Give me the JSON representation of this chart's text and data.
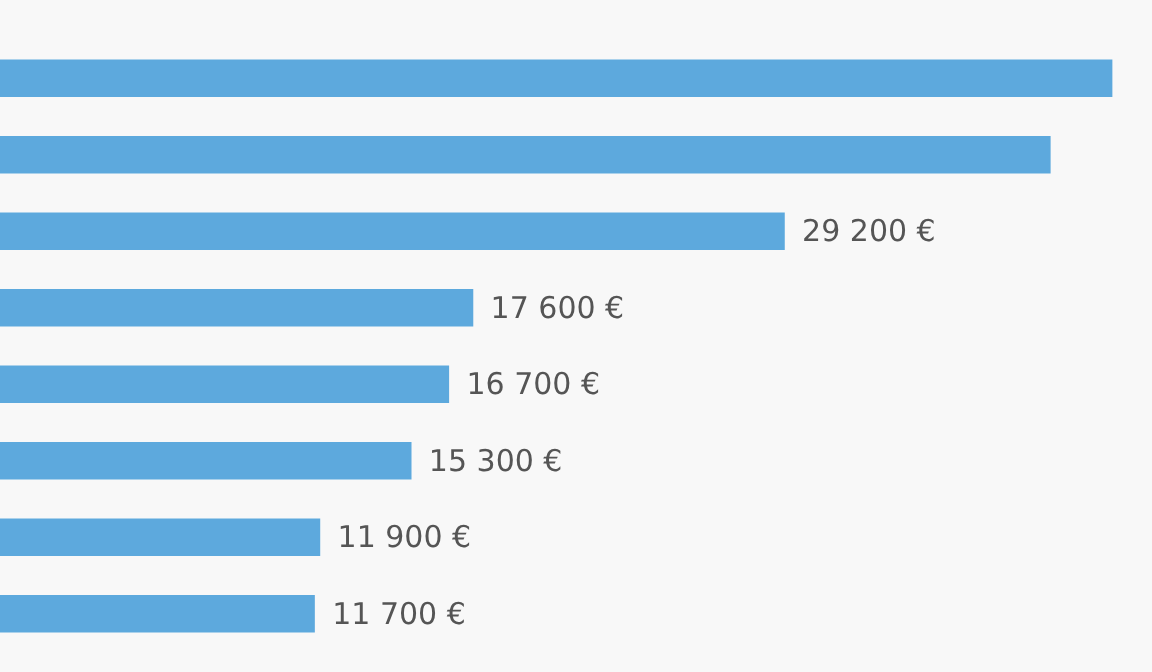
{
  "chart_data": {
    "type": "bar",
    "orientation": "horizontal",
    "categories": [
      null,
      null,
      null,
      null,
      null,
      null,
      null,
      null
    ],
    "values": [
      41400,
      39100,
      29200,
      17600,
      16700,
      15300,
      11900,
      11700
    ],
    "value_labels": [
      null,
      null,
      "29 200 €",
      "17 600 €",
      "16 700 €",
      "15 300 €",
      "11 900 €",
      "11 700 €"
    ],
    "color": "#5da9dd",
    "legend": false
  }
}
